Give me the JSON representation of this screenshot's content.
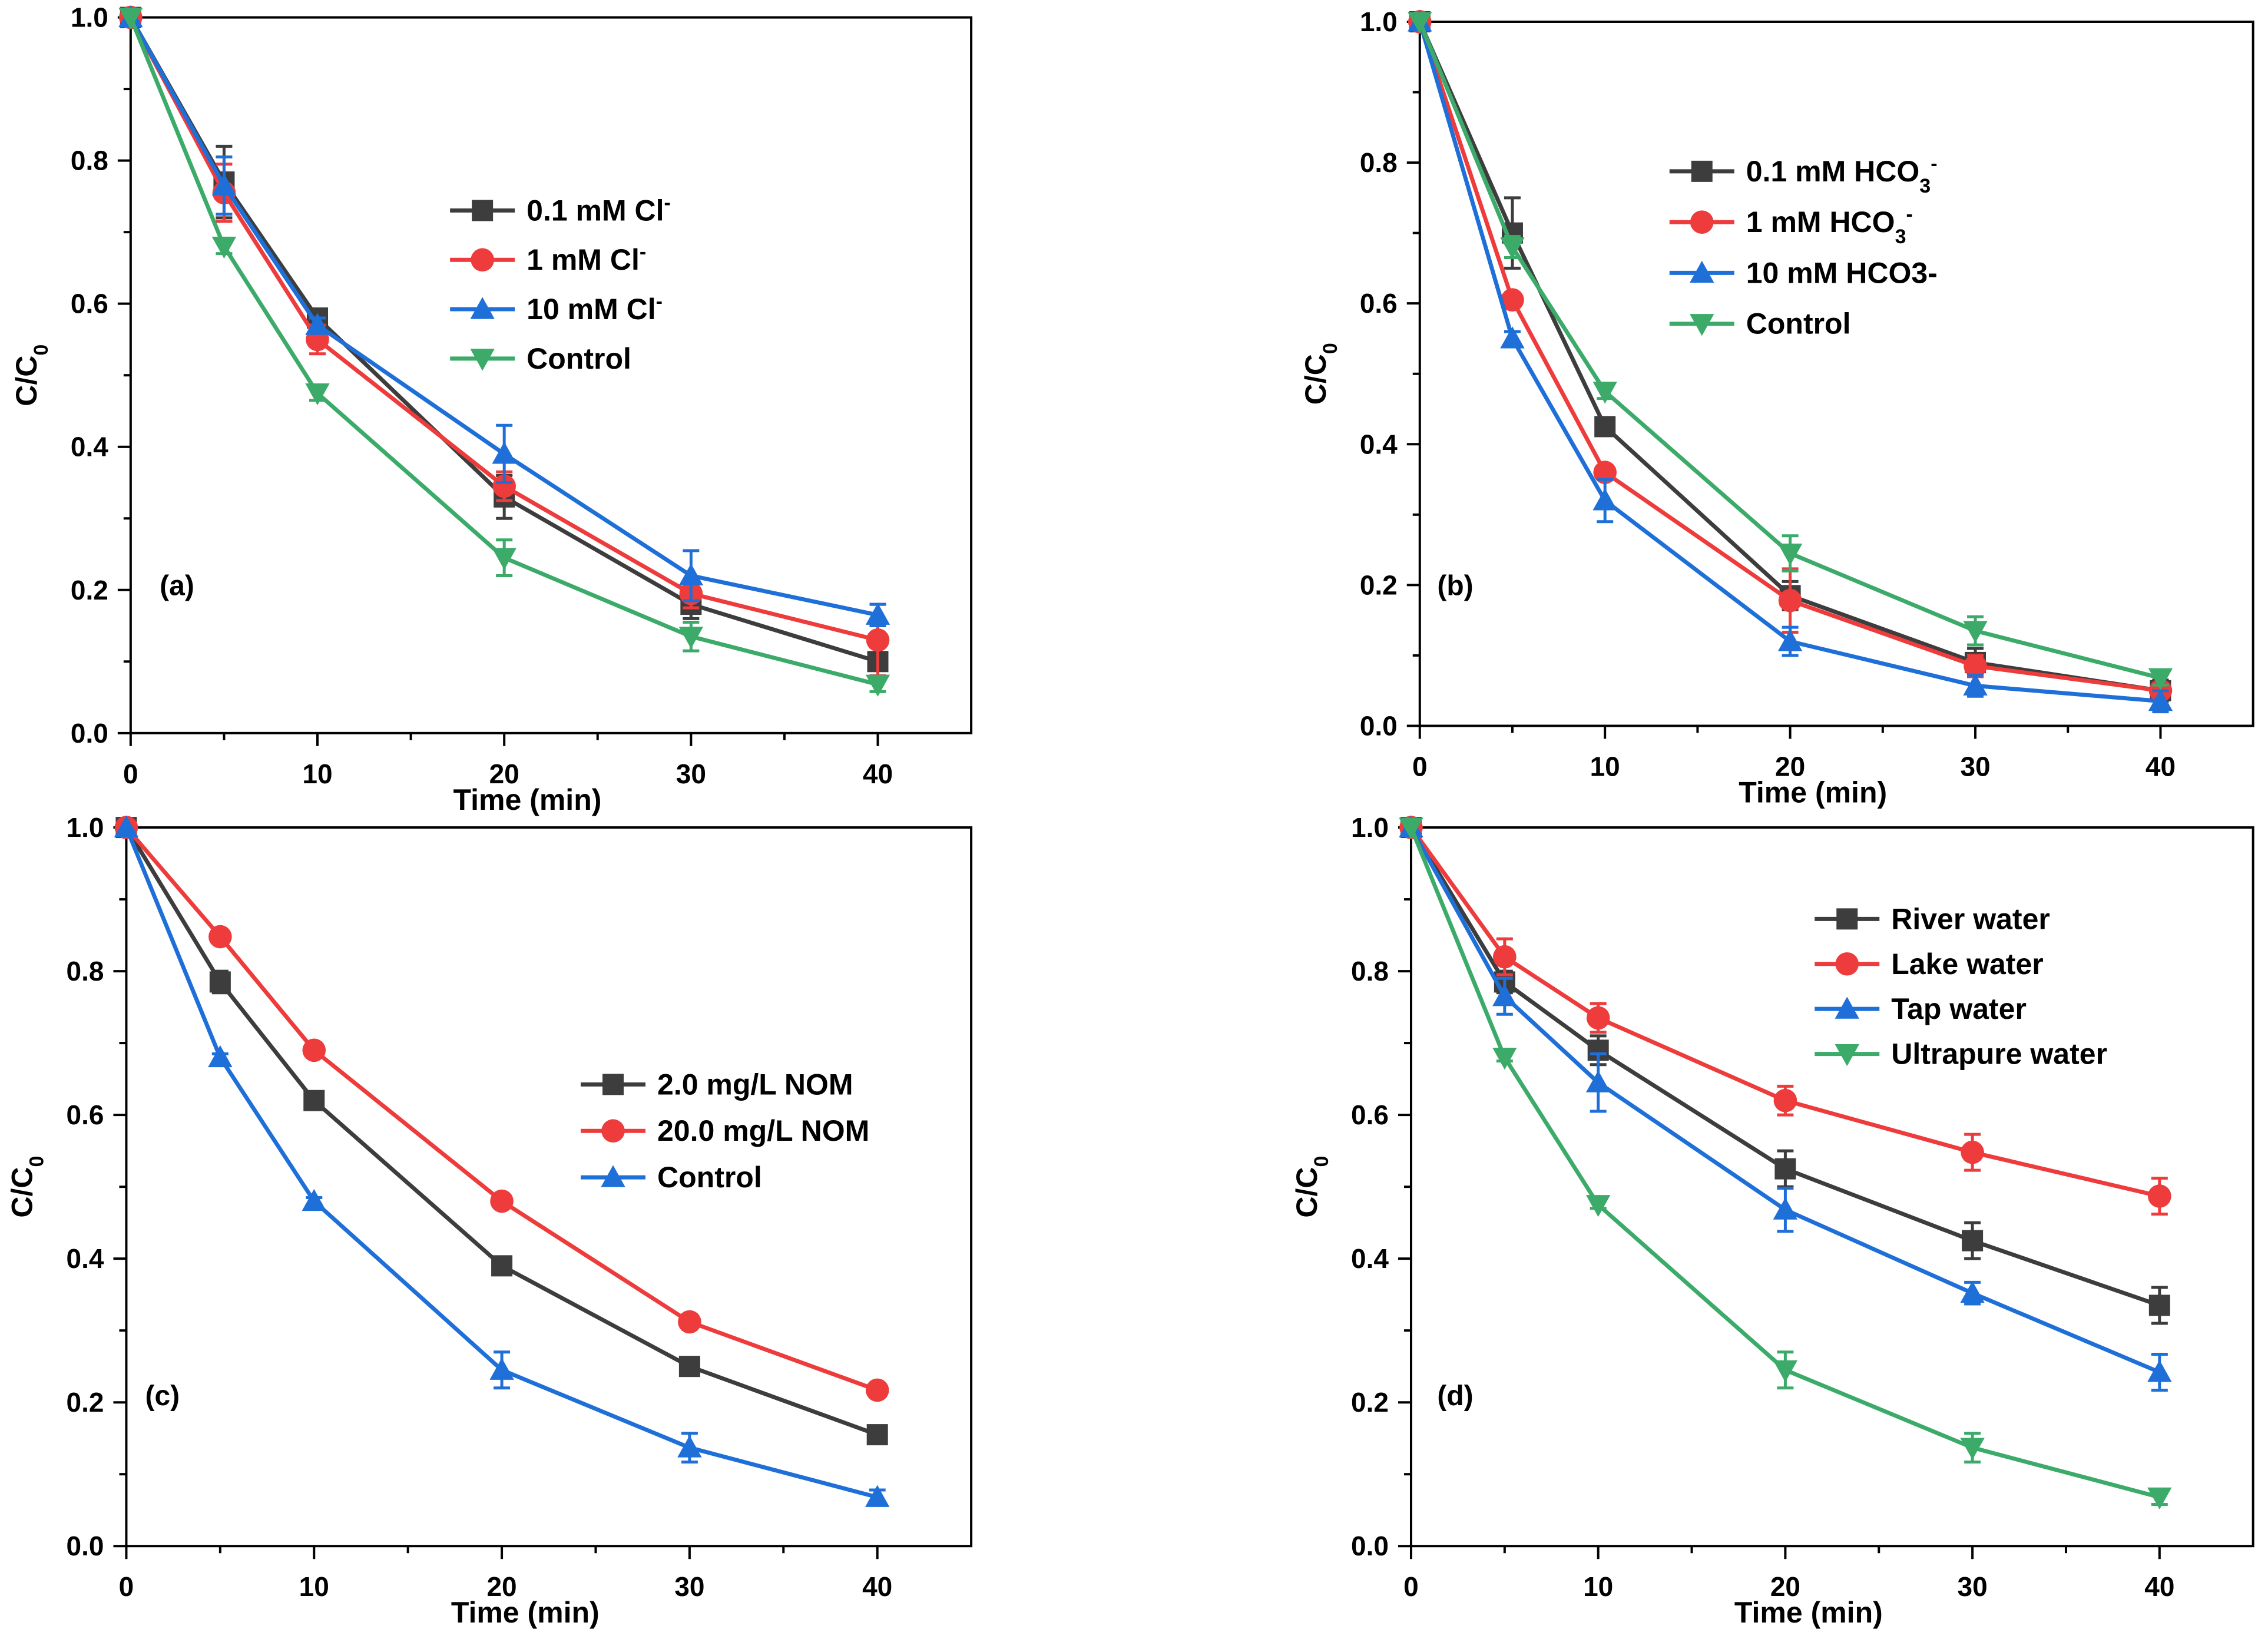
{
  "colors": {
    "black": "#3d3d3d",
    "red": "#ee3b3b",
    "blue": "#1f6fd8",
    "green": "#3cab6a"
  },
  "chart_data": [
    {
      "type": "line",
      "panel_label": "(a)",
      "xlabel": "Time (min)",
      "ylabel": "C/C",
      "ylabel_sub": "0",
      "xlim": [
        0,
        45
      ],
      "ylim": [
        0,
        1.0
      ],
      "xticks": [
        "0",
        "10",
        "20",
        "30",
        "40"
      ],
      "yticks": [
        "0.0",
        "0.2",
        "0.4",
        "0.6",
        "0.8",
        "1.0"
      ],
      "legend_position": "upper-middle",
      "x": [
        0,
        5,
        10,
        20,
        30,
        40
      ],
      "series": [
        {
          "name": "0.1 mM Cl",
          "sup": "-",
          "color": "black",
          "marker": "square",
          "values": [
            1.0,
            0.77,
            0.58,
            0.33,
            0.18,
            0.1
          ],
          "errors": [
            0,
            0.05,
            0.01,
            0.03,
            0.02,
            0.02
          ]
        },
        {
          "name": "1 mM Cl",
          "sup": "-",
          "color": "red",
          "marker": "circle",
          "values": [
            1.0,
            0.755,
            0.55,
            0.345,
            0.195,
            0.13
          ],
          "errors": [
            0,
            0.04,
            0.02,
            0.02,
            0.02,
            0.05
          ]
        },
        {
          "name": "10 mM Cl",
          "sup": "-",
          "color": "blue",
          "marker": "triangle-up",
          "values": [
            1.0,
            0.765,
            0.57,
            0.39,
            0.22,
            0.165
          ],
          "errors": [
            0,
            0.04,
            0.01,
            0.04,
            0.035,
            0.015
          ]
        },
        {
          "name": "Control",
          "sup": "",
          "color": "green",
          "marker": "triangle-down",
          "values": [
            1.0,
            0.68,
            0.475,
            0.245,
            0.135,
            0.068
          ],
          "errors": [
            0,
            0.01,
            0.01,
            0.025,
            0.02,
            0.01
          ]
        }
      ]
    },
    {
      "type": "line",
      "panel_label": "(b)",
      "xlabel": "Time (min)",
      "ylabel": "C/C",
      "ylabel_sub": "0",
      "xlim": [
        0,
        45
      ],
      "ylim": [
        0,
        1.0
      ],
      "xticks": [
        "0",
        "10",
        "20",
        "30",
        "40"
      ],
      "yticks": [
        "0.0",
        "0.2",
        "0.4",
        "0.6",
        "0.8",
        "1.0"
      ],
      "legend_position": "top-right",
      "x": [
        0,
        5,
        10,
        20,
        30,
        40
      ],
      "series": [
        {
          "name": "0.1 mM HCO",
          "sub": "3",
          "sup": "-",
          "color": "black",
          "marker": "square",
          "values": [
            1.0,
            0.7,
            0.425,
            0.185,
            0.09,
            0.05
          ],
          "errors": [
            0,
            0.05,
            0.01,
            0.02,
            0.02,
            0.015
          ]
        },
        {
          "name": "1 mM HCO",
          "sub": "3",
          "sup": "-",
          "color": "red",
          "marker": "circle",
          "values": [
            1.0,
            0.605,
            0.36,
            0.178,
            0.085,
            0.05
          ],
          "errors": [
            0,
            0.01,
            0.01,
            0.045,
            0.015,
            0.01
          ]
        },
        {
          "name": "10 mM HCO3-",
          "sub": "",
          "sup": "",
          "color": "blue",
          "marker": "triangle-up",
          "values": [
            1.0,
            0.55,
            0.32,
            0.12,
            0.057,
            0.035
          ],
          "errors": [
            0,
            0.01,
            0.03,
            0.02,
            0.015,
            0.015
          ]
        },
        {
          "name": "Control",
          "sub": "",
          "sup": "",
          "color": "green",
          "marker": "triangle-down",
          "values": [
            1.0,
            0.68,
            0.475,
            0.245,
            0.135,
            0.068
          ],
          "errors": [
            0,
            0.015,
            0.01,
            0.025,
            0.02,
            0.01
          ]
        }
      ]
    },
    {
      "type": "line",
      "panel_label": "(c)",
      "xlabel": "Time (min)",
      "ylabel": "C/C",
      "ylabel_sub": "0",
      "xlim": [
        0,
        45
      ],
      "ylim": [
        0,
        1.0
      ],
      "xticks": [
        "0",
        "10",
        "20",
        "30",
        "40"
      ],
      "yticks": [
        "0.0",
        "0.2",
        "0.4",
        "0.6",
        "0.8",
        "1.0"
      ],
      "legend_position": "middle-right",
      "x": [
        0,
        5,
        10,
        20,
        30,
        40
      ],
      "series": [
        {
          "name": "2.0 mg/L NOM",
          "color": "black",
          "marker": "square",
          "values": [
            1.0,
            0.785,
            0.62,
            0.39,
            0.25,
            0.155
          ],
          "errors": [
            0,
            0.015,
            0.005,
            0.005,
            0.005,
            0.005
          ]
        },
        {
          "name": "20.0 mg/L NOM",
          "color": "red",
          "marker": "circle",
          "values": [
            1.0,
            0.848,
            0.69,
            0.48,
            0.312,
            0.217
          ],
          "errors": [
            0,
            0.005,
            0.005,
            0.005,
            0.01,
            0.005
          ]
        },
        {
          "name": "Control",
          "color": "blue",
          "marker": "triangle-up",
          "values": [
            1.0,
            0.68,
            0.48,
            0.245,
            0.137,
            0.068
          ],
          "errors": [
            0,
            0.005,
            0.005,
            0.025,
            0.02,
            0.01
          ]
        }
      ]
    },
    {
      "type": "line",
      "panel_label": "(d)",
      "xlabel": "Time (min)",
      "ylabel": "C/C",
      "ylabel_sub": "0",
      "xlim": [
        0,
        45
      ],
      "ylim": [
        0,
        1.0
      ],
      "xticks": [
        "0",
        "10",
        "20",
        "30",
        "40"
      ],
      "yticks": [
        "0.0",
        "0.2",
        "0.4",
        "0.6",
        "0.8",
        "1.0"
      ],
      "legend_position": "top-right",
      "x": [
        0,
        5,
        10,
        20,
        30,
        40
      ],
      "series": [
        {
          "name": "River water",
          "color": "black",
          "marker": "square",
          "values": [
            1.0,
            0.785,
            0.69,
            0.525,
            0.425,
            0.335
          ],
          "errors": [
            0,
            0.015,
            0.02,
            0.025,
            0.025,
            0.025
          ]
        },
        {
          "name": "Lake water",
          "color": "red",
          "marker": "circle",
          "values": [
            1.0,
            0.82,
            0.735,
            0.62,
            0.548,
            0.487
          ],
          "errors": [
            0,
            0.025,
            0.02,
            0.02,
            0.025,
            0.025
          ]
        },
        {
          "name": "Tap water",
          "color": "blue",
          "marker": "triangle-up",
          "values": [
            1.0,
            0.765,
            0.645,
            0.468,
            0.352,
            0.242
          ],
          "errors": [
            0,
            0.025,
            0.04,
            0.03,
            0.015,
            0.025
          ]
        },
        {
          "name": "Ultrapure water",
          "color": "green",
          "marker": "triangle-down",
          "values": [
            1.0,
            0.68,
            0.475,
            0.245,
            0.137,
            0.068
          ],
          "errors": [
            0,
            0.005,
            0.005,
            0.025,
            0.02,
            0.01
          ]
        }
      ]
    }
  ]
}
